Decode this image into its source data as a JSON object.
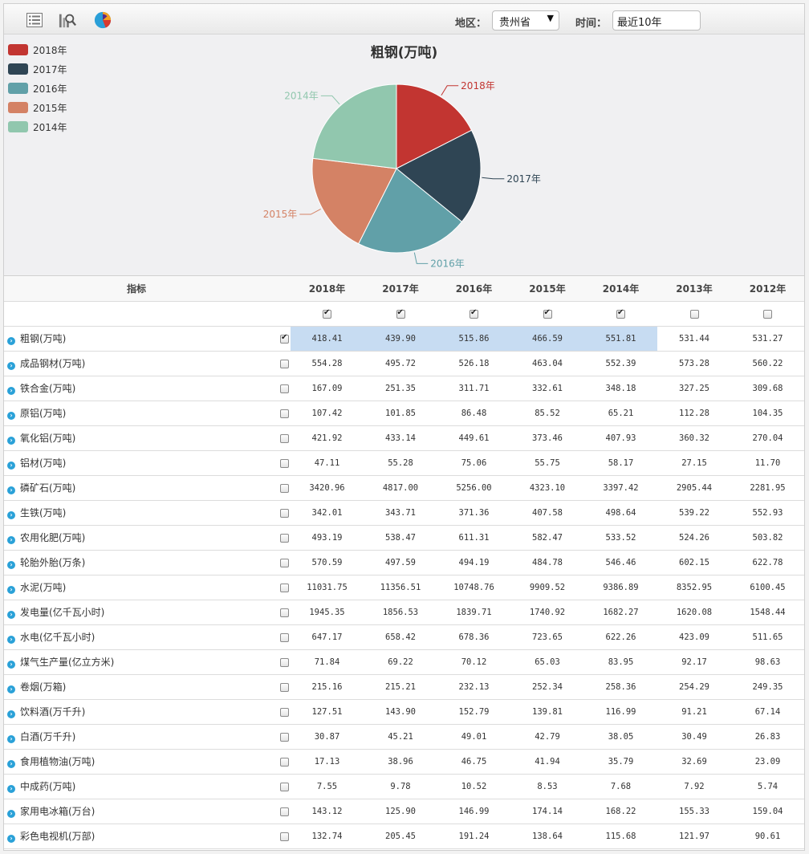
{
  "toolbar": {
    "region_label": "地区：",
    "region_value": "贵州省",
    "time_label": "时间：",
    "time_value": "最近10年"
  },
  "chart_data": {
    "type": "pie",
    "title": "粗钢(万吨)",
    "categories": [
      "2018年",
      "2017年",
      "2016年",
      "2015年",
      "2014年"
    ],
    "values": [
      418.41,
      439.9,
      515.86,
      466.59,
      551.81
    ],
    "colors": [
      "#c23531",
      "#2f4554",
      "#61a0a8",
      "#d48265",
      "#91c7ae"
    ],
    "legend_position": "top-left"
  },
  "table": {
    "header_label": "指标",
    "years": [
      "2018年",
      "2017年",
      "2016年",
      "2015年",
      "2014年",
      "2013年",
      "2012年"
    ],
    "year_checked": [
      true,
      true,
      true,
      true,
      true,
      false,
      false
    ],
    "rows": [
      {
        "name": "粗钢(万吨)",
        "checked": true,
        "values": [
          "418.41",
          "439.90",
          "515.86",
          "466.59",
          "551.81",
          "531.44",
          "531.27"
        ]
      },
      {
        "name": "成品钢材(万吨)",
        "checked": false,
        "values": [
          "554.28",
          "495.72",
          "526.18",
          "463.04",
          "552.39",
          "573.28",
          "560.22"
        ]
      },
      {
        "name": "铁合金(万吨)",
        "checked": false,
        "values": [
          "167.09",
          "251.35",
          "311.71",
          "332.61",
          "348.18",
          "327.25",
          "309.68"
        ]
      },
      {
        "name": "原铝(万吨)",
        "checked": false,
        "values": [
          "107.42",
          "101.85",
          "86.48",
          "85.52",
          "65.21",
          "112.28",
          "104.35"
        ]
      },
      {
        "name": "氧化铝(万吨)",
        "checked": false,
        "values": [
          "421.92",
          "433.14",
          "449.61",
          "373.46",
          "407.93",
          "360.32",
          "270.04"
        ]
      },
      {
        "name": "铝材(万吨)",
        "checked": false,
        "values": [
          "47.11",
          "55.28",
          "75.06",
          "55.75",
          "58.17",
          "27.15",
          "11.70"
        ]
      },
      {
        "name": "磷矿石(万吨)",
        "checked": false,
        "values": [
          "3420.96",
          "4817.00",
          "5256.00",
          "4323.10",
          "3397.42",
          "2905.44",
          "2281.95"
        ]
      },
      {
        "name": "生铁(万吨)",
        "checked": false,
        "values": [
          "342.01",
          "343.71",
          "371.36",
          "407.58",
          "498.64",
          "539.22",
          "552.93"
        ]
      },
      {
        "name": "农用化肥(万吨)",
        "checked": false,
        "values": [
          "493.19",
          "538.47",
          "611.31",
          "582.47",
          "533.52",
          "524.26",
          "503.82"
        ]
      },
      {
        "name": "轮胎外胎(万条)",
        "checked": false,
        "values": [
          "570.59",
          "497.59",
          "494.19",
          "484.78",
          "546.46",
          "602.15",
          "622.78"
        ]
      },
      {
        "name": "水泥(万吨)",
        "checked": false,
        "values": [
          "11031.75",
          "11356.51",
          "10748.76",
          "9909.52",
          "9386.89",
          "8352.95",
          "6100.45"
        ]
      },
      {
        "name": "发电量(亿千瓦小时)",
        "checked": false,
        "values": [
          "1945.35",
          "1856.53",
          "1839.71",
          "1740.92",
          "1682.27",
          "1620.08",
          "1548.44"
        ]
      },
      {
        "name": "水电(亿千瓦小时)",
        "checked": false,
        "values": [
          "647.17",
          "658.42",
          "678.36",
          "723.65",
          "622.26",
          "423.09",
          "511.65"
        ]
      },
      {
        "name": "煤气生产量(亿立方米)",
        "checked": false,
        "values": [
          "71.84",
          "69.22",
          "70.12",
          "65.03",
          "83.95",
          "92.17",
          "98.63"
        ]
      },
      {
        "name": "卷烟(万箱)",
        "checked": false,
        "values": [
          "215.16",
          "215.21",
          "232.13",
          "252.34",
          "258.36",
          "254.29",
          "249.35"
        ]
      },
      {
        "name": "饮料酒(万千升)",
        "checked": false,
        "values": [
          "127.51",
          "143.90",
          "152.79",
          "139.81",
          "116.99",
          "91.21",
          "67.14"
        ]
      },
      {
        "name": "白酒(万千升)",
        "checked": false,
        "values": [
          "30.87",
          "45.21",
          "49.01",
          "42.79",
          "38.05",
          "30.49",
          "26.83"
        ]
      },
      {
        "name": "食用植物油(万吨)",
        "checked": false,
        "values": [
          "17.13",
          "38.96",
          "46.75",
          "41.94",
          "35.79",
          "32.69",
          "23.09"
        ]
      },
      {
        "name": "中成药(万吨)",
        "checked": false,
        "values": [
          "7.55",
          "9.78",
          "10.52",
          "8.53",
          "7.68",
          "7.92",
          "5.74"
        ]
      },
      {
        "name": "家用电冰箱(万台)",
        "checked": false,
        "values": [
          "143.12",
          "125.90",
          "146.99",
          "174.14",
          "168.22",
          "155.33",
          "159.04"
        ]
      },
      {
        "name": "彩色电视机(万部)",
        "checked": false,
        "values": [
          "132.74",
          "205.45",
          "191.24",
          "138.64",
          "115.68",
          "121.97",
          "90.61"
        ]
      }
    ]
  }
}
